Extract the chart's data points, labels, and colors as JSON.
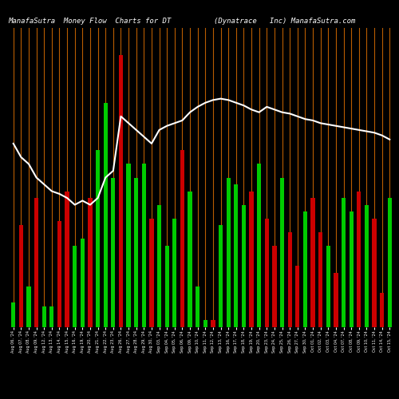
{
  "title": "ManafaSutra  Money Flow  Charts for DT          (Dynatrace   Inc) ManafaSutra.com",
  "background_color": "#000000",
  "bar_colors_pattern": [
    "green",
    "red",
    "green",
    "red",
    "green",
    "green",
    "red",
    "red",
    "green",
    "green",
    "red",
    "green",
    "green",
    "green",
    "red",
    "green",
    "green",
    "green",
    "red",
    "green",
    "green",
    "green",
    "red",
    "green",
    "green",
    "green",
    "red",
    "green",
    "green",
    "green",
    "green",
    "red",
    "green",
    "red",
    "red",
    "green",
    "red",
    "red",
    "green",
    "red",
    "red",
    "green",
    "red",
    "green",
    "green",
    "red",
    "green",
    "red",
    "red",
    "green"
  ],
  "bar_values": [
    18,
    75,
    30,
    95,
    15,
    15,
    78,
    100,
    60,
    65,
    95,
    130,
    165,
    110,
    200,
    120,
    110,
    120,
    80,
    90,
    60,
    80,
    130,
    100,
    30,
    5,
    5,
    75,
    110,
    105,
    90,
    100,
    120,
    80,
    60,
    110,
    70,
    45,
    85,
    95,
    70,
    60,
    40,
    95,
    85,
    100,
    90,
    80,
    25,
    95
  ],
  "line_values": [
    135,
    125,
    120,
    110,
    105,
    100,
    98,
    95,
    90,
    93,
    90,
    95,
    110,
    115,
    155,
    150,
    145,
    140,
    135,
    145,
    148,
    150,
    152,
    158,
    162,
    165,
    167,
    168,
    167,
    165,
    163,
    160,
    158,
    162,
    160,
    158,
    157,
    155,
    153,
    152,
    150,
    149,
    148,
    147,
    146,
    145,
    144,
    143,
    141,
    138
  ],
  "x_labels": [
    "Aug 06, '24",
    "Aug 07, '24",
    "Aug 08, '24",
    "Aug 09, '24",
    "Aug 12, '24",
    "Aug 13, '24",
    "Aug 14, '24",
    "Aug 15, '24",
    "Aug 16, '24",
    "Aug 19, '24",
    "Aug 20, '24",
    "Aug 21, '24",
    "Aug 22, '24",
    "Aug 23, '24",
    "Aug 26, '24",
    "Aug 27, '24",
    "Aug 28, '24",
    "Aug 29, '24",
    "Aug 30, '24",
    "Sep 03, '24",
    "Sep 04, '24",
    "Sep 05, '24",
    "Sep 06, '24",
    "Sep 09, '24",
    "Sep 10, '24",
    "Sep 11, '24",
    "Sep 12, '24",
    "Sep 13, '24",
    "Sep 16, '24",
    "Sep 17, '24",
    "Sep 18, '24",
    "Sep 19, '24",
    "Sep 20, '24",
    "Sep 23, '24",
    "Sep 24, '24",
    "Sep 25, '24",
    "Sep 26, '24",
    "Sep 27, '24",
    "Sep 30, '24",
    "Oct 01, '24",
    "Oct 02, '24",
    "Oct 03, '24",
    "Oct 04, '24",
    "Oct 07, '24",
    "Oct 08, '24",
    "Oct 09, '24",
    "Oct 10, '24",
    "Oct 11, '24",
    "Oct 14, '24",
    "Oct 15, '24"
  ],
  "orange_line_color": "#b85c00",
  "line_color": "#ffffff",
  "title_fontsize": 6.5,
  "bar_width": 0.55,
  "ylim": [
    0,
    220
  ]
}
